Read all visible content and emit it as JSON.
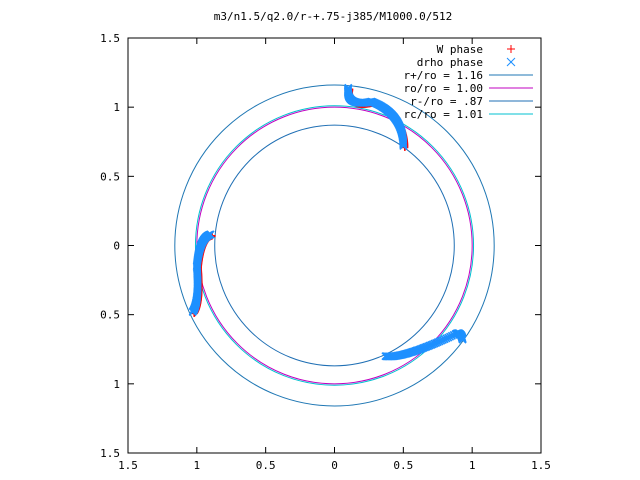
{
  "chart_data": {
    "type": "scatter",
    "title": "m3/n1.5/q2.0/r-+.75-j385/M1000.0/512",
    "xlim": [
      -1.5,
      1.5
    ],
    "ylim": [
      -1.5,
      1.5
    ],
    "x_tick_values": [
      -1.5,
      -1,
      -0.5,
      0,
      0.5,
      1,
      1.5
    ],
    "x_tick_labels": [
      "1.5",
      "1",
      "0.5",
      "0",
      "0.5",
      "1",
      "1.5"
    ],
    "y_tick_values": [
      1.5,
      1,
      0.5,
      0,
      -0.5,
      -1,
      -1.5
    ],
    "y_tick_labels": [
      "1.5",
      "1",
      "0.5",
      "0",
      "0.5",
      "1",
      "1.5"
    ],
    "grid": false,
    "legend_position": "top-right",
    "series": [
      {
        "name": "W phase",
        "kind": "points",
        "marker": "+",
        "color": "#ff0000",
        "arcs": [
          {
            "start": [
              0.1,
              1.14
            ],
            "control": [
              0.08,
              1.0
            ],
            "end": [
              0.27,
              1.04
            ]
          },
          {
            "start": [
              0.27,
              1.04
            ],
            "control": [
              0.5,
              0.95
            ],
            "end": [
              0.5,
              0.72
            ]
          },
          {
            "start": [
              -1.03,
              -0.48
            ],
            "control": [
              -0.98,
              -0.4
            ],
            "end": [
              -1.0,
              -0.15
            ]
          },
          {
            "start": [
              -1.0,
              -0.15
            ],
            "control": [
              -0.98,
              0.06
            ],
            "end": [
              -0.9,
              0.08
            ]
          }
        ]
      },
      {
        "name": "drho phase",
        "kind": "points",
        "marker": "x",
        "color": "#1e90ff",
        "arcs": [
          {
            "start": [
              0.1,
              1.14
            ],
            "control": [
              0.08,
              1.0
            ],
            "end": [
              0.27,
              1.04
            ]
          },
          {
            "start": [
              0.27,
              1.04
            ],
            "control": [
              0.5,
              0.95
            ],
            "end": [
              0.5,
              0.72
            ]
          },
          {
            "start": [
              -1.03,
              -0.48
            ],
            "control": [
              -0.98,
              -0.4
            ],
            "end": [
              -1.0,
              -0.15
            ]
          },
          {
            "start": [
              -1.0,
              -0.15
            ],
            "control": [
              -0.98,
              0.06
            ],
            "end": [
              -0.9,
              0.08
            ]
          },
          {
            "start": [
              0.37,
              -0.8
            ],
            "control": [
              0.5,
              -0.82
            ],
            "end": [
              0.88,
              -0.64
            ]
          },
          {
            "start": [
              0.88,
              -0.64
            ],
            "control": [
              0.92,
              -0.62
            ],
            "end": [
              0.93,
              -0.68
            ]
          }
        ]
      },
      {
        "name": "r+/ro = 1.16",
        "kind": "circle",
        "radius": 1.16,
        "color": "#1f77b4"
      },
      {
        "name": "ro/ro = 1.00",
        "kind": "circle",
        "radius": 1.0,
        "color": "#c000c0"
      },
      {
        "name": "r-/ro = .87",
        "kind": "circle",
        "radius": 0.87,
        "color": "#1f6fb4"
      },
      {
        "name": "rc/ro = 1.01",
        "kind": "circle",
        "radius": 1.01,
        "color": "#00c0d0"
      }
    ]
  }
}
